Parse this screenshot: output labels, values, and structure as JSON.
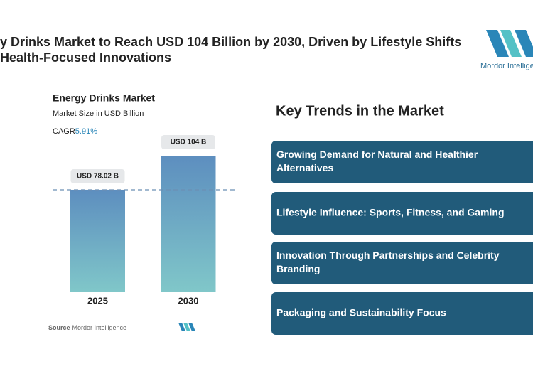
{
  "header": {
    "title_lines": [
      "y Drinks Market to Reach USD 104 Billion by 2030, Driven by Lifestyle Shifts",
      "Health-Focused Innovations"
    ],
    "logo": "Mordor Intelligence"
  },
  "chart_data": {
    "type": "bar",
    "title": "Energy Drinks Market",
    "subtitle": "Market Size in USD Billion",
    "cagr_label": "CAGR",
    "cagr_value": "5.91%",
    "categories": [
      "2025",
      "2030"
    ],
    "values": [
      78.02,
      104
    ],
    "value_labels": [
      "USD 78.02 B",
      "USD 104 B"
    ],
    "colors": [
      "#5d8ebf",
      "#80c7c9"
    ],
    "source_label": "Source",
    "source": "Mordor Intelligence"
  },
  "trends": {
    "title": "Key Trends in the Market",
    "color": "#215b7a",
    "items": [
      [
        "Growing Demand for Natural and Healthier",
        "Alternatives"
      ],
      [
        "Lifestyle Influence: Sports, Fitness, and Gaming"
      ],
      [
        "Innovation Through Partnerships and Celebrity",
        "Branding"
      ],
      [
        "Packaging and Sustainability Focus"
      ]
    ]
  }
}
